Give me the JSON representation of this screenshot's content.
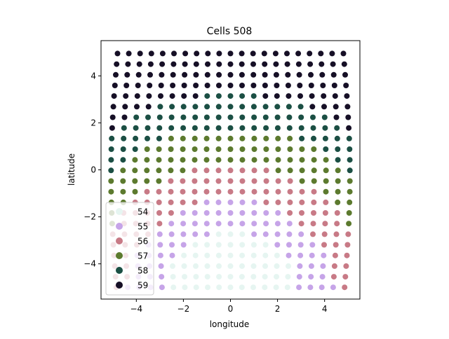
{
  "chart_data": {
    "type": "scatter",
    "title": "Cells 508",
    "xlabel": "longitude",
    "ylabel": "latitude",
    "xlim": [
      -5.5,
      5.5
    ],
    "ylim": [
      -5.5,
      5.5
    ],
    "xticks": [
      -4,
      -2,
      0,
      2,
      4
    ],
    "yticks": [
      -4,
      -2,
      0,
      2,
      4
    ],
    "grid": false,
    "legend_position": "lower-left",
    "grid_layout": {
      "rows": 23,
      "cols": 21,
      "top_y": 4.95,
      "bottom_y": -5.0,
      "top_x_min": -4.8,
      "top_x_max": 4.8,
      "bottom_x_min": -4.85,
      "bottom_x_max": 4.85,
      "lateral_bulge": 0.25
    },
    "series": [
      {
        "name": "54",
        "color": "#e6f5f1",
        "value": 54
      },
      {
        "name": "55",
        "color": "#c6a4e8",
        "value": 55
      },
      {
        "name": "56",
        "color": "#c87a86",
        "value": 56
      },
      {
        "name": "57",
        "color": "#5c7a2e",
        "value": 57
      },
      {
        "name": "58",
        "color": "#1b4f44",
        "value": 58
      },
      {
        "name": "59",
        "color": "#160f26",
        "value": 59
      }
    ]
  }
}
